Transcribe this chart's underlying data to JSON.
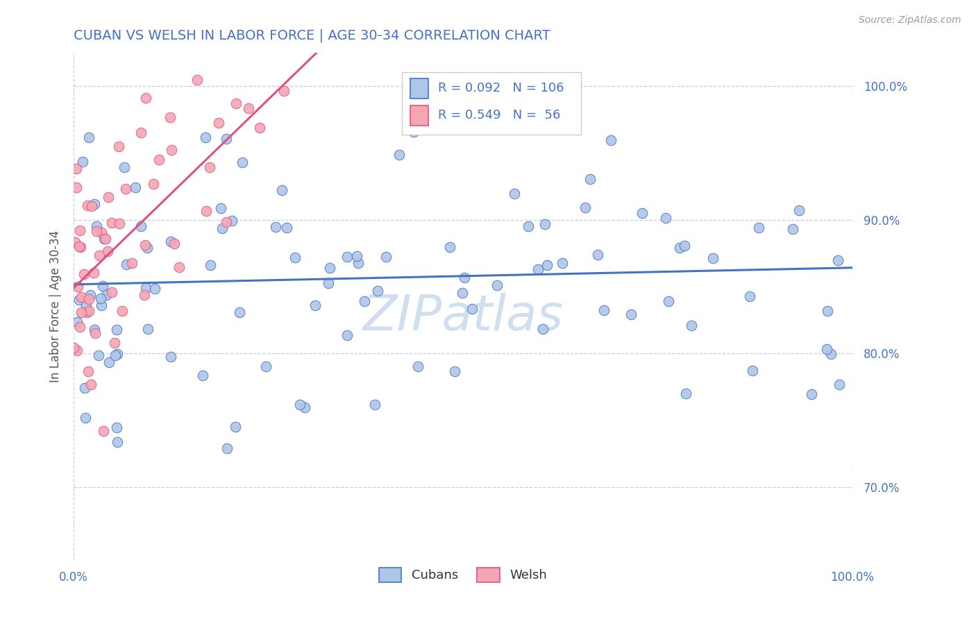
{
  "title": "CUBAN VS WELSH IN LABOR FORCE | AGE 30-34 CORRELATION CHART",
  "source_text": "Source: ZipAtlas.com",
  "ylabel": "In Labor Force | Age 30-34",
  "r_cubans": 0.092,
  "n_cubans": 106,
  "r_welsh": 0.549,
  "n_welsh": 56,
  "cubans_color": "#aec6e8",
  "welsh_color": "#f4a7b2",
  "cubans_line_color": "#4472C4",
  "welsh_line_color": "#E05080",
  "title_color": "#4472C4",
  "background_color": "#ffffff",
  "grid_color": "#b0c4de",
  "tick_color": "#4472C4",
  "ylabel_color": "#555555",
  "source_color": "#999999",
  "watermark_color": "#d0dff0",
  "legend_text_color": "#333333",
  "statsbox_edge_color": "#cccccc",
  "xmin": 0.0,
  "xmax": 1.0,
  "ymin": 0.645,
  "ymax": 1.025,
  "yticks": [
    0.7,
    0.8,
    0.9,
    1.0
  ],
  "cubans_seed": 77,
  "welsh_seed": 33
}
